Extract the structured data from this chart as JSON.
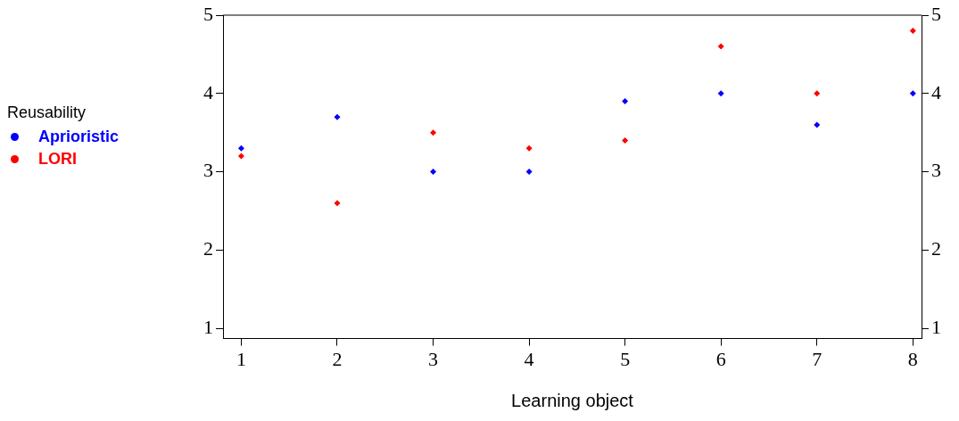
{
  "chart_data": {
    "type": "scatter",
    "xlabel": "Learning object",
    "legend_title": "Reusability",
    "legend": "left",
    "marker": "diamond",
    "grid": false,
    "x": [
      1,
      2,
      3,
      4,
      5,
      6,
      7,
      8
    ],
    "series": [
      {
        "name": "Aprioristic",
        "color": "#0000ff",
        "values": [
          3.3,
          3.7,
          3.0,
          3.0,
          3.9,
          4.0,
          3.6,
          4.0
        ]
      },
      {
        "name": "LORI",
        "color": "#ff0000",
        "values": [
          3.2,
          2.6,
          3.5,
          3.3,
          3.4,
          4.6,
          4.0,
          4.8
        ]
      }
    ],
    "xlim": [
      0.81,
      8.09
    ],
    "xticks": [
      1,
      2,
      3,
      4,
      5,
      6,
      7,
      8
    ],
    "ylim": [
      0.87,
      5
    ],
    "yticks": [
      1,
      2,
      3,
      4,
      5
    ],
    "y2lim": [
      0.87,
      5
    ],
    "y2ticks": [
      1,
      2,
      3,
      4,
      5
    ]
  }
}
